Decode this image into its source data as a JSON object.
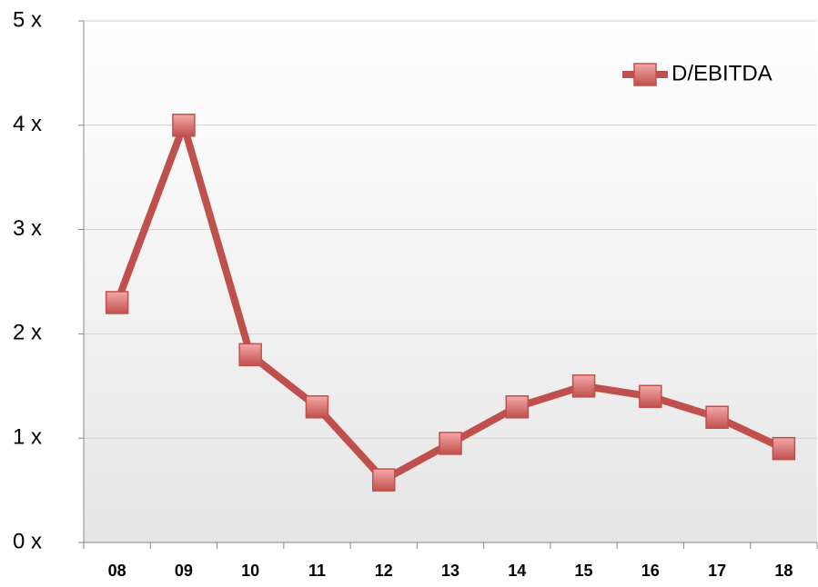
{
  "chart_data": {
    "type": "line",
    "categories": [
      "08",
      "09",
      "10",
      "11",
      "12",
      "13",
      "14",
      "15",
      "16",
      "17",
      "18"
    ],
    "series": [
      {
        "name": "D/EBITDA",
        "color": "#c0504d",
        "values": [
          2.3,
          4.0,
          1.8,
          1.3,
          0.6,
          0.95,
          1.3,
          1.5,
          1.4,
          1.2,
          0.9
        ]
      }
    ],
    "ylim": [
      0,
      5
    ],
    "yticks": [
      {
        "value": 0,
        "label": "0 x"
      },
      {
        "value": 1,
        "label": "1 x"
      },
      {
        "value": 2,
        "label": "2 x"
      },
      {
        "value": 3,
        "label": "3 x"
      },
      {
        "value": 4,
        "label": "4 x"
      },
      {
        "value": 5,
        "label": "5 x"
      }
    ],
    "grid": true,
    "legend": "upper right"
  }
}
